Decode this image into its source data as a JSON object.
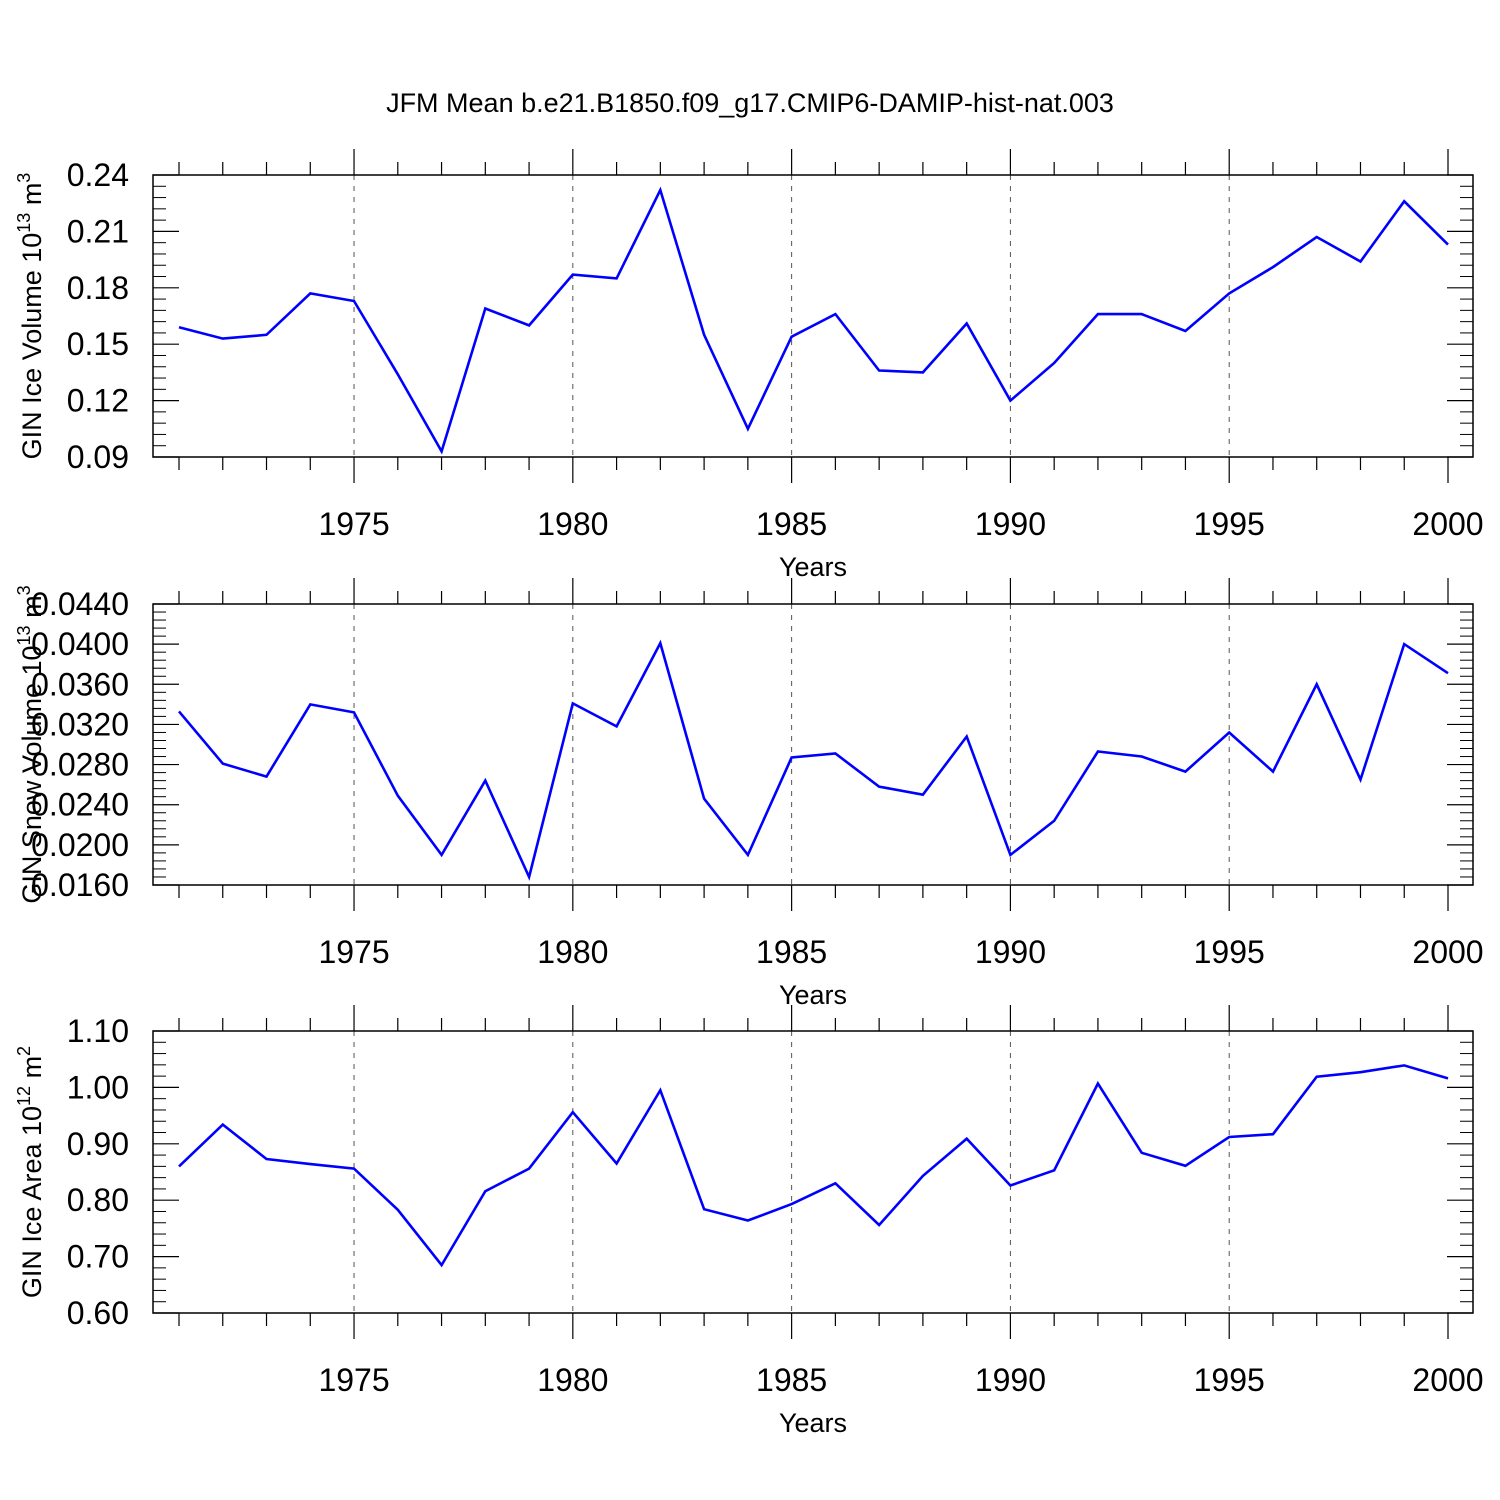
{
  "title": "JFM Mean b.e21.B1850.f09_g17.CMIP6-DAMIP-hist-nat.003",
  "colors": {
    "line": "#0000ff",
    "axis": "#000000",
    "grid": "#555555"
  },
  "chart_data": [
    {
      "type": "line",
      "ylabel": {
        "text": "GIN Ice Volume 10",
        "exp": "13",
        "unit": " m",
        "unit_exp": "3"
      },
      "xlabel": "Years",
      "xlim": [
        1971,
        2000
      ],
      "ylim": [
        0.09,
        0.24
      ],
      "yticks": [
        "0.09",
        "0.12",
        "0.15",
        "0.18",
        "0.21",
        "0.24"
      ],
      "xticks": [
        "1975",
        "1980",
        "1985",
        "1990",
        "1995",
        "2000"
      ],
      "grid": "vertical dashed at major x ticks",
      "series": [
        {
          "x": [
            1971,
            1972,
            1973,
            1974,
            1975,
            1976,
            1977,
            1978,
            1979,
            1980,
            1981,
            1982,
            1983,
            1984,
            1985,
            1986,
            1987,
            1988,
            1989,
            1990,
            1991,
            1992,
            1993,
            1994,
            1995,
            1996,
            1997,
            1998,
            1999,
            2000
          ],
          "values": [
            0.159,
            0.153,
            0.155,
            0.177,
            0.173,
            0.134,
            0.093,
            0.169,
            0.16,
            0.187,
            0.185,
            0.232,
            0.155,
            0.105,
            0.154,
            0.166,
            0.136,
            0.135,
            0.161,
            0.12,
            0.14,
            0.166,
            0.166,
            0.157,
            0.177,
            0.191,
            0.207,
            0.194,
            0.226,
            0.203
          ]
        }
      ]
    },
    {
      "type": "line",
      "ylabel": {
        "text": "GIN Snow Volume 10",
        "exp": "13",
        "unit": " m",
        "unit_exp": "3"
      },
      "xlabel": "Years",
      "xlim": [
        1971,
        2000
      ],
      "ylim": [
        0.016,
        0.044
      ],
      "yticks": [
        "0.0160",
        "0.0200",
        "0.0240",
        "0.0280",
        "0.0320",
        "0.0360",
        "0.0400",
        "0.0440"
      ],
      "xticks": [
        "1975",
        "1980",
        "1985",
        "1990",
        "1995",
        "2000"
      ],
      "grid": "vertical dashed at major x ticks",
      "series": [
        {
          "x": [
            1971,
            1972,
            1973,
            1974,
            1975,
            1976,
            1977,
            1978,
            1979,
            1980,
            1981,
            1982,
            1983,
            1984,
            1985,
            1986,
            1987,
            1988,
            1989,
            1990,
            1991,
            1992,
            1993,
            1994,
            1995,
            1996,
            1997,
            1998,
            1999,
            2000
          ],
          "values": [
            0.0333,
            0.0281,
            0.0268,
            0.034,
            0.0332,
            0.0249,
            0.019,
            0.0264,
            0.0168,
            0.0341,
            0.0318,
            0.0401,
            0.0246,
            0.019,
            0.0287,
            0.0291,
            0.0258,
            0.025,
            0.0308,
            0.019,
            0.0224,
            0.0293,
            0.0288,
            0.0273,
            0.0312,
            0.0273,
            0.036,
            0.0265,
            0.04,
            0.0371
          ]
        }
      ]
    },
    {
      "type": "line",
      "ylabel": {
        "text": "GIN Ice Area 10",
        "exp": "12",
        "unit": " m",
        "unit_exp": "2"
      },
      "xlabel": "Years",
      "xlim": [
        1971,
        2000
      ],
      "ylim": [
        0.6,
        1.1
      ],
      "yticks": [
        "0.60",
        "0.70",
        "0.80",
        "0.90",
        "1.00",
        "1.10"
      ],
      "xticks": [
        "1975",
        "1980",
        "1985",
        "1990",
        "1995",
        "2000"
      ],
      "grid": "vertical dashed at major x ticks",
      "series": [
        {
          "x": [
            1971,
            1972,
            1973,
            1974,
            1975,
            1976,
            1977,
            1978,
            1979,
            1980,
            1981,
            1982,
            1983,
            1984,
            1985,
            1986,
            1987,
            1988,
            1989,
            1990,
            1991,
            1992,
            1993,
            1994,
            1995,
            1996,
            1997,
            1998,
            1999,
            2000
          ],
          "values": [
            0.86,
            0.934,
            0.873,
            0.864,
            0.856,
            0.783,
            0.685,
            0.816,
            0.856,
            0.956,
            0.865,
            0.995,
            0.784,
            0.764,
            0.793,
            0.83,
            0.756,
            0.843,
            0.909,
            0.826,
            0.853,
            1.007,
            0.884,
            0.861,
            0.912,
            0.917,
            1.019,
            1.027,
            1.039,
            1.016
          ]
        }
      ]
    }
  ]
}
